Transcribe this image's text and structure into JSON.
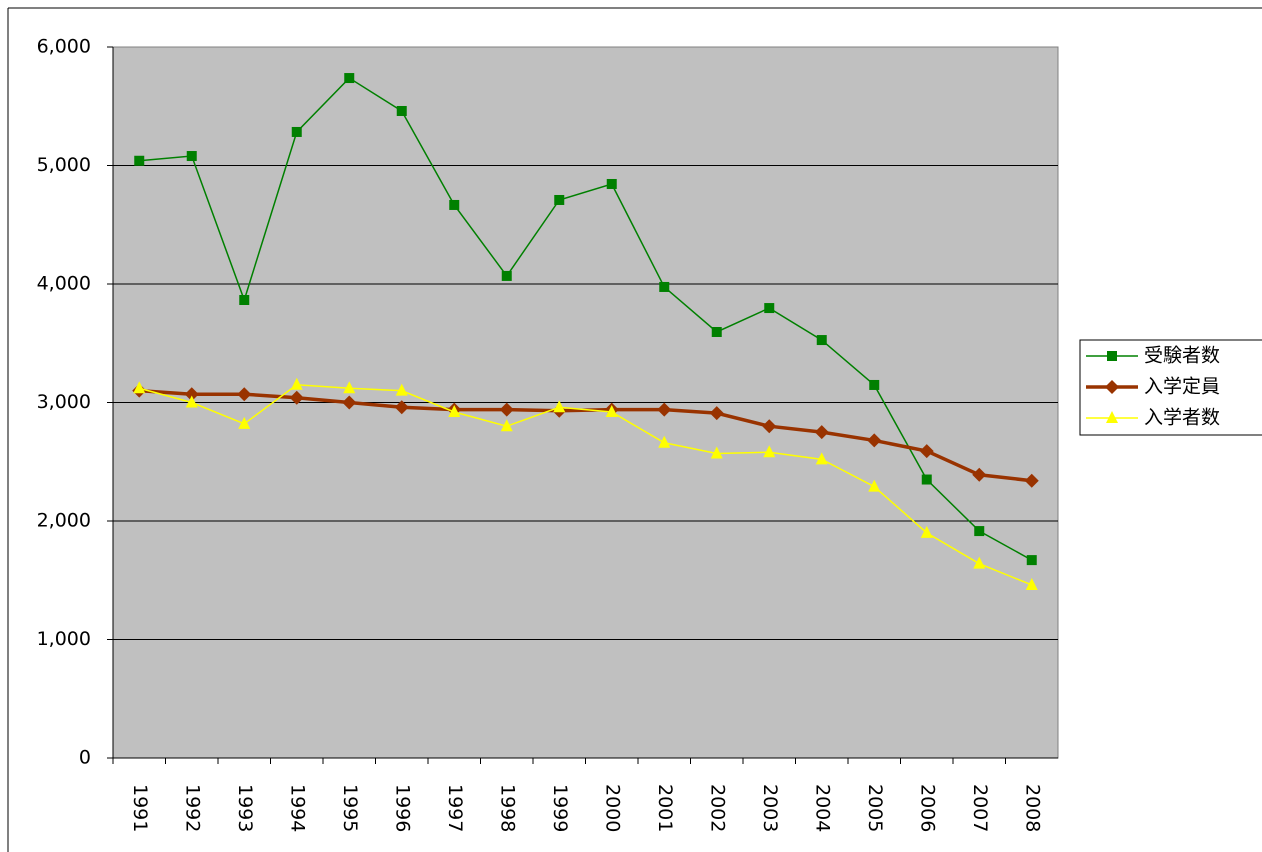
{
  "chart_data": {
    "type": "line",
    "categories": [
      "1991",
      "1992",
      "1993",
      "1994",
      "1995",
      "1996",
      "1997",
      "1998",
      "1999",
      "2000",
      "2001",
      "2002",
      "2003",
      "2004",
      "2005",
      "2006",
      "2007",
      "2008"
    ],
    "series": [
      {
        "name": "受験者数",
        "color": "#008000",
        "marker": "square",
        "line_width": 1.5,
        "values": [
          5040,
          5080,
          3865,
          5283,
          5738,
          5460,
          4667,
          4068,
          4709,
          4844,
          3975,
          3595,
          3797,
          3527,
          3148,
          2350,
          1915,
          1670
        ]
      },
      {
        "name": "入学定員",
        "color": "#993300",
        "marker": "diamond",
        "line_width": 3.5,
        "values": [
          3100,
          3070,
          3070,
          3040,
          3000,
          2960,
          2940,
          2940,
          2930,
          2940,
          2940,
          2910,
          2800,
          2750,
          2680,
          2590,
          2390,
          2340
        ]
      },
      {
        "name": "入学者数",
        "color": "#ffff00",
        "marker": "triangle",
        "line_width": 1.5,
        "values": [
          3120,
          3000,
          2820,
          3150,
          3120,
          3100,
          2920,
          2800,
          2960,
          2920,
          2660,
          2570,
          2580,
          2520,
          2290,
          1900,
          1640,
          1460
        ]
      }
    ],
    "ylim": [
      0,
      6000
    ],
    "yticks": [
      0,
      {
        "value": 1000,
        "label": "1,000"
      },
      {
        "value": 2000,
        "label": "2,000"
      },
      {
        "value": 3000,
        "label": "3,000"
      },
      {
        "value": 4000,
        "label": "4,000"
      },
      {
        "value": 5000,
        "label": "5,000"
      },
      {
        "value": 6000,
        "label": "6,000"
      }
    ],
    "grid": true,
    "legend": "right",
    "plot_background": "#c0c0c0"
  }
}
